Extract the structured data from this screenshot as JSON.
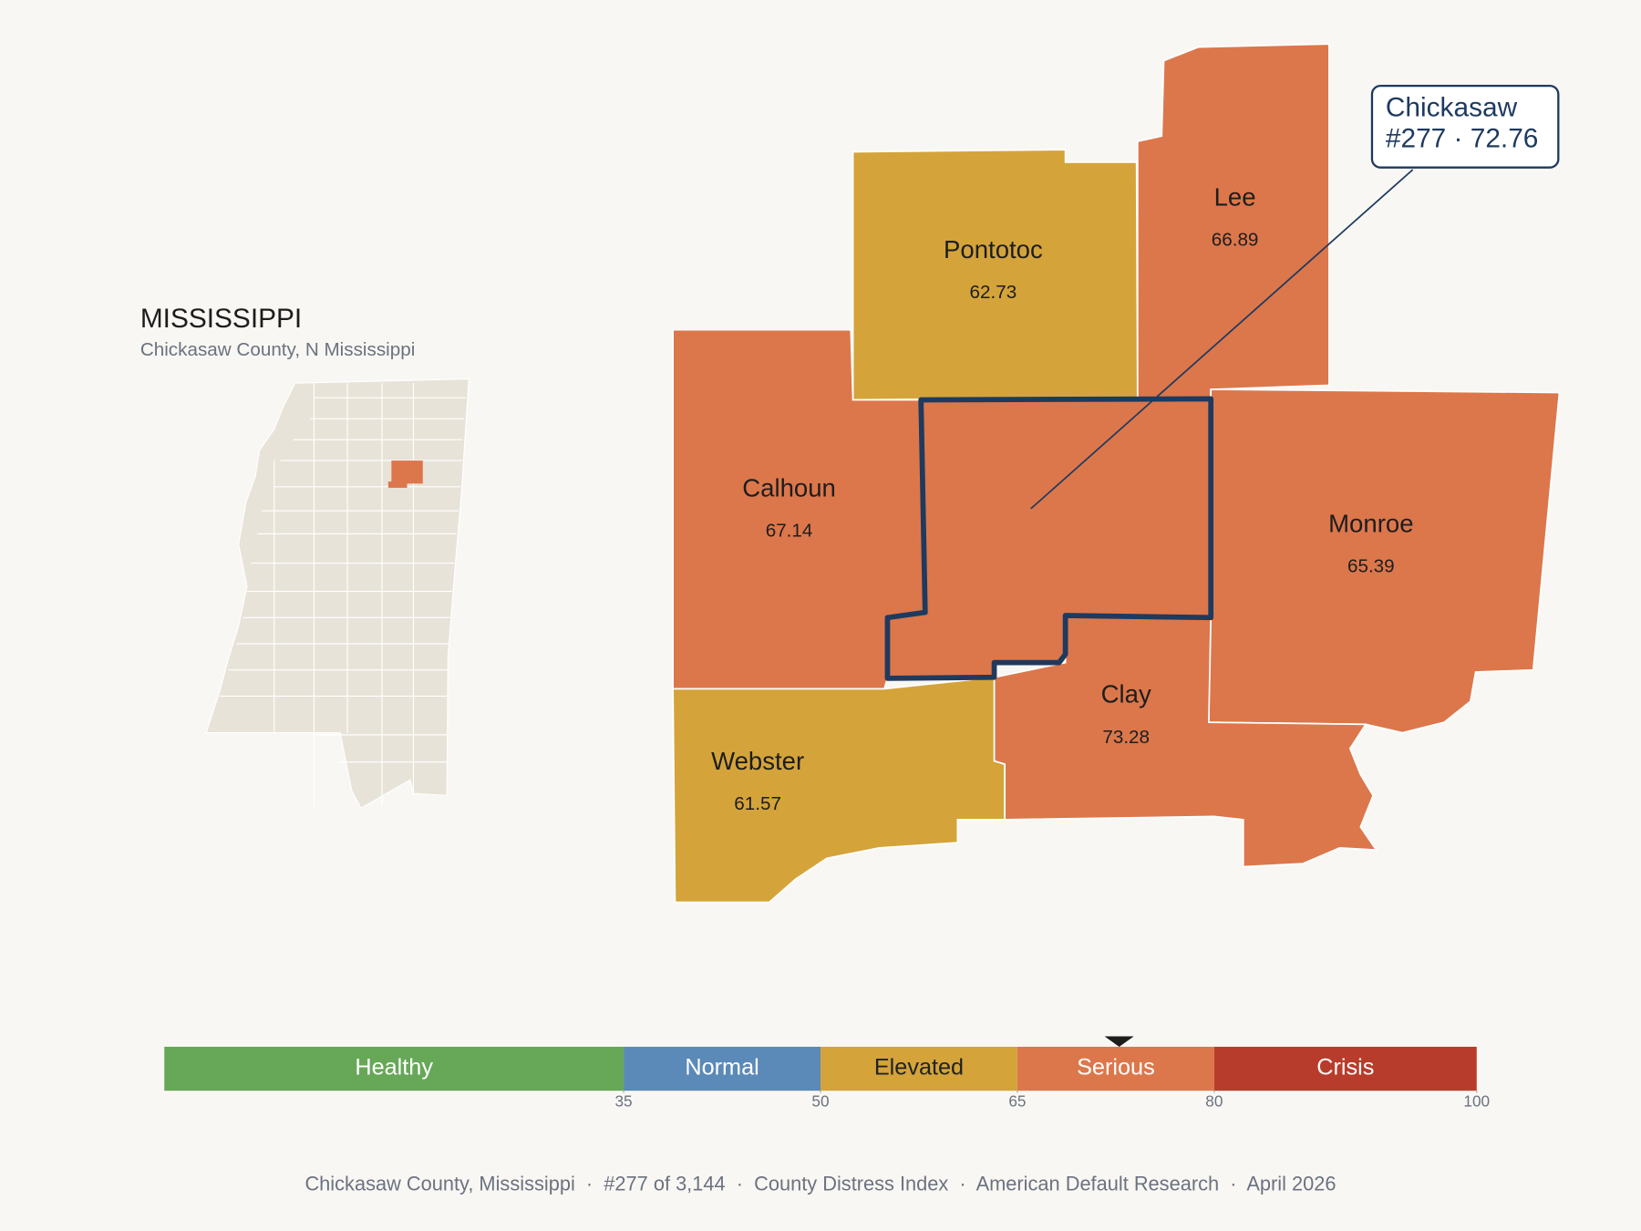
{
  "header": {
    "title": "MISSISSIPPI",
    "subtitle": "Chickasaw County, N Mississippi"
  },
  "focus": {
    "name": "Chickasaw",
    "detail": "#277 · 72.76",
    "value": 72.76
  },
  "counties": [
    {
      "name": "Pontotoc",
      "value": 62.73
    },
    {
      "name": "Lee",
      "value": 66.89
    },
    {
      "name": "Calhoun",
      "value": 67.14
    },
    {
      "name": "Monroe",
      "value": 65.39
    },
    {
      "name": "Clay",
      "value": 73.28
    },
    {
      "name": "Webster",
      "value": 61.57
    }
  ],
  "scale": {
    "range": [
      0,
      100
    ],
    "ticks": [
      35,
      50,
      65,
      80,
      100
    ],
    "bands": [
      {
        "label": "Healthy",
        "color": "#67a758",
        "label_color": "#ffffff"
      },
      {
        "label": "Normal",
        "color": "#5b89b8",
        "label_color": "#ffffff"
      },
      {
        "label": "Elevated",
        "color": "#d4a43a",
        "label_color": "#222222"
      },
      {
        "label": "Serious",
        "color": "#dc774b",
        "label_color": "#ffffff"
      },
      {
        "label": "Crisis",
        "color": "#b83c2b",
        "label_color": "#ffffff"
      }
    ]
  },
  "footer": "Chickasaw County, Mississippi  ·  #277 of 3,144  ·  County Distress Index  ·  American Default Research  ·  April 2026"
}
